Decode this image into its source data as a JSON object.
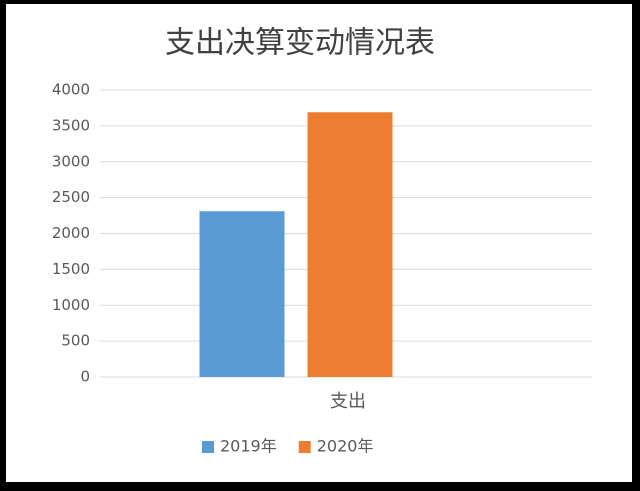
{
  "chart_data": {
    "type": "bar",
    "title": "支出决算变动情况表",
    "categories": [
      "支出"
    ],
    "series": [
      {
        "name": "2019年",
        "color": "#5b9bd5",
        "values": [
          2310
        ]
      },
      {
        "name": "2020年",
        "color": "#ed7d31",
        "values": [
          3690
        ]
      }
    ],
    "ylim": [
      0,
      4000
    ],
    "yticks": [
      0,
      500,
      1000,
      1500,
      2000,
      2500,
      3000,
      3500,
      4000
    ],
    "grid": true,
    "legend": "bottom"
  }
}
